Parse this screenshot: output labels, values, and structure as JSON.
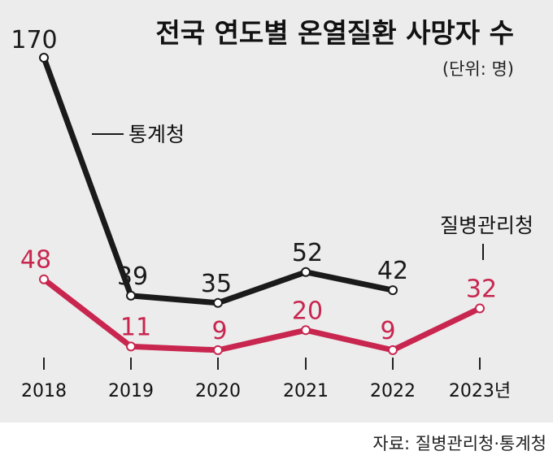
{
  "chart_data": {
    "type": "line",
    "title": "전국 연도별 온열질환 사망자 수",
    "subtitle": "(단위: 명)",
    "categories": [
      "2018",
      "2019",
      "2020",
      "2021",
      "2022",
      "2023년"
    ],
    "ylim": [
      0,
      180
    ],
    "grid": false,
    "series": [
      {
        "name": "통계청",
        "color": "#1a1a1a",
        "values": [
          170,
          39,
          35,
          52,
          42,
          null
        ]
      },
      {
        "name": "질병관리청",
        "color": "#c8264f",
        "values": [
          48,
          11,
          9,
          20,
          9,
          32
        ]
      }
    ]
  },
  "source": "자료: 질병관리청·통계청"
}
